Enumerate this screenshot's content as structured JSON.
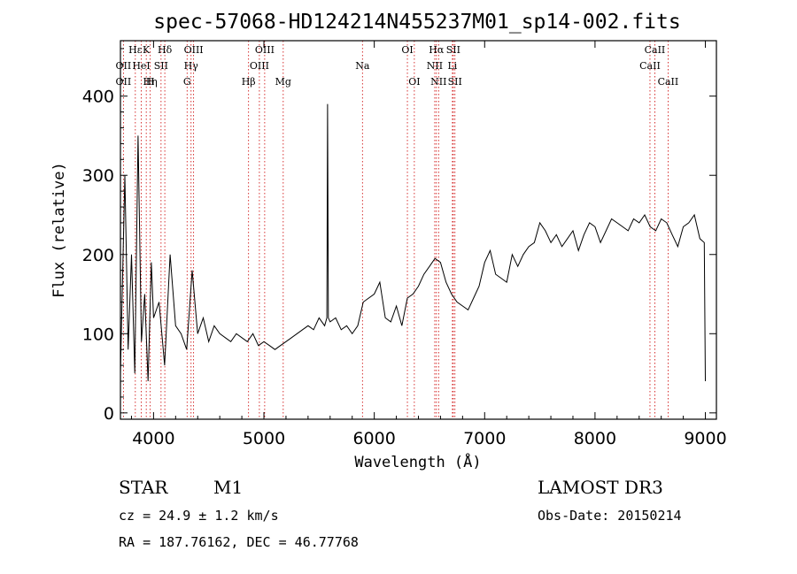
{
  "chart_data": {
    "type": "line",
    "title": "spec-57068-HD124214N455237M01_sp14-002.fits",
    "xlabel": "Wavelength (Å)",
    "ylabel": "Flux (relative)",
    "xlim": [
      3700,
      9100
    ],
    "ylim": [
      -8,
      470
    ],
    "x_ticks": [
      4000,
      5000,
      6000,
      7000,
      8000,
      9000
    ],
    "y_ticks": [
      0,
      100,
      200,
      300,
      400
    ],
    "series": [
      {
        "x": [
          3700,
          3740,
          3770,
          3800,
          3830,
          3860,
          3890,
          3920,
          3950,
          3980,
          4000,
          4050,
          4100,
          4150,
          4200,
          4250,
          4300,
          4350,
          4400,
          4450,
          4500,
          4550,
          4600,
          4650,
          4700,
          4750,
          4800,
          4850,
          4900,
          4950,
          5000,
          5050,
          5100,
          5150,
          5200,
          5250,
          5300,
          5350,
          5400,
          5450,
          5500,
          5550,
          5570,
          5577,
          5584,
          5600,
          5650,
          5700,
          5750,
          5800,
          5850,
          5900,
          5950,
          6000,
          6050,
          6100,
          6150,
          6200,
          6250,
          6300,
          6350,
          6400,
          6450,
          6500,
          6550,
          6600,
          6650,
          6700,
          6750,
          6800,
          6850,
          6900,
          6950,
          7000,
          7050,
          7100,
          7150,
          7200,
          7250,
          7300,
          7350,
          7400,
          7450,
          7500,
          7550,
          7600,
          7650,
          7700,
          7750,
          7800,
          7850,
          7900,
          7950,
          8000,
          8050,
          8100,
          8150,
          8200,
          8250,
          8300,
          8350,
          8400,
          8450,
          8500,
          8550,
          8600,
          8650,
          8700,
          8750,
          8800,
          8850,
          8900,
          8950,
          8990,
          9000
        ],
        "y": [
          50,
          300,
          80,
          200,
          50,
          350,
          90,
          150,
          40,
          190,
          120,
          140,
          60,
          200,
          110,
          100,
          80,
          180,
          100,
          120,
          90,
          110,
          100,
          95,
          90,
          100,
          95,
          90,
          100,
          85,
          90,
          85,
          80,
          85,
          90,
          95,
          100,
          105,
          110,
          105,
          120,
          110,
          120,
          390,
          120,
          115,
          120,
          105,
          110,
          100,
          110,
          140,
          145,
          150,
          165,
          120,
          115,
          135,
          110,
          145,
          150,
          160,
          175,
          185,
          195,
          190,
          165,
          150,
          140,
          135,
          130,
          145,
          160,
          190,
          205,
          175,
          170,
          165,
          200,
          185,
          200,
          210,
          215,
          240,
          230,
          215,
          225,
          210,
          220,
          230,
          205,
          225,
          240,
          235,
          215,
          230,
          245,
          240,
          235,
          230,
          245,
          240,
          250,
          235,
          230,
          245,
          240,
          225,
          210,
          235,
          240,
          250,
          220,
          215,
          40
        ]
      }
    ],
    "line_labels": [
      {
        "x": 3727,
        "text": "OII",
        "row": 1
      },
      {
        "x": 3727,
        "text": "OII",
        "row": 2
      },
      {
        "x": 3835,
        "text": "Hε",
        "row": 0
      },
      {
        "x": 3889,
        "text": "HeI",
        "row": 1
      },
      {
        "x": 3934,
        "text": "K",
        "row": 0
      },
      {
        "x": 3970,
        "text": "Hη",
        "row": 2
      },
      {
        "x": 3970,
        "text": "H",
        "row": 2
      },
      {
        "x": 4068,
        "text": "SII",
        "row": 1
      },
      {
        "x": 4102,
        "text": "Hδ",
        "row": 0
      },
      {
        "x": 4304,
        "text": "G",
        "row": 2
      },
      {
        "x": 4340,
        "text": "Hγ",
        "row": 1
      },
      {
        "x": 4363,
        "text": "OIII",
        "row": 0
      },
      {
        "x": 4861,
        "text": "Hβ",
        "row": 2
      },
      {
        "x": 4959,
        "text": "OIII",
        "row": 1
      },
      {
        "x": 5007,
        "text": "OIII",
        "row": 0
      },
      {
        "x": 5175,
        "text": "Mg",
        "row": 2
      },
      {
        "x": 5893,
        "text": "Na",
        "row": 1
      },
      {
        "x": 6300,
        "text": "OI",
        "row": 0
      },
      {
        "x": 6363,
        "text": "OI",
        "row": 2
      },
      {
        "x": 6548,
        "text": "NII",
        "row": 1
      },
      {
        "x": 6563,
        "text": "Hα",
        "row": 0
      },
      {
        "x": 6583,
        "text": "NII",
        "row": 2
      },
      {
        "x": 6708,
        "text": "Li",
        "row": 1
      },
      {
        "x": 6716,
        "text": "SII",
        "row": 0
      },
      {
        "x": 6731,
        "text": "SII",
        "row": 2
      },
      {
        "x": 8498,
        "text": "CaII",
        "row": 1
      },
      {
        "x": 8542,
        "text": "CaII",
        "row": 0
      },
      {
        "x": 8662,
        "text": "CaII",
        "row": 2
      }
    ],
    "marker_lines": [
      3727,
      3835,
      3889,
      3934,
      3970,
      4068,
      4102,
      4304,
      4340,
      4363,
      4861,
      4959,
      5007,
      5175,
      5893,
      6300,
      6363,
      6548,
      6563,
      6583,
      6708,
      6716,
      6731,
      8498,
      8542,
      8662
    ],
    "marker_color": "#cc0000",
    "line_color": "#000000"
  },
  "info": {
    "class_label": "STAR",
    "subclass": "M1",
    "survey": "LAMOST DR3",
    "cz": "cz = 24.9 ± 1.2 km/s",
    "obs_date": "Obs-Date: 20150214",
    "coords": "RA = 187.76162, DEC =  46.77768"
  }
}
